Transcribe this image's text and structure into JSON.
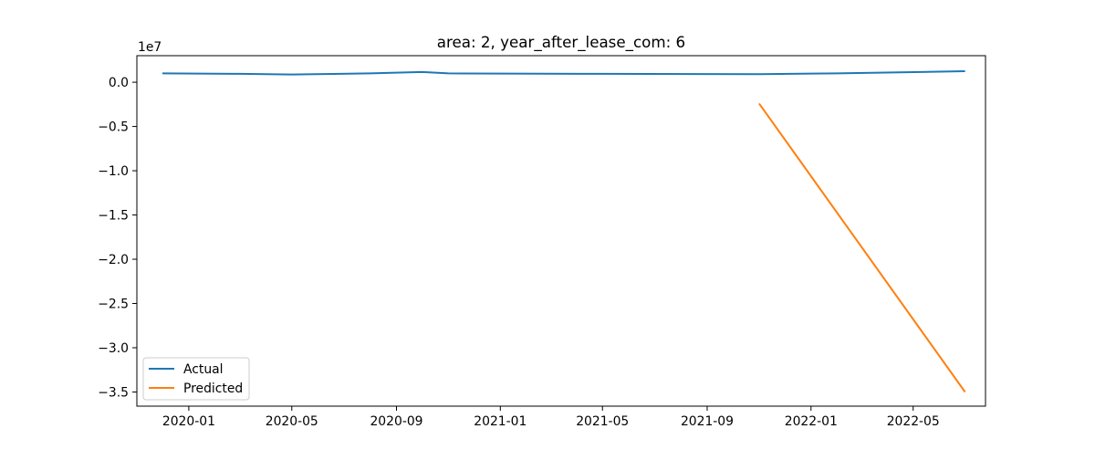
{
  "chart_data": {
    "type": "line",
    "title": "area: 2, year_after_lease_com: 6",
    "xlabel": "",
    "ylabel": "",
    "y_offset_label": "1e7",
    "x_type": "date",
    "xlim": [
      "2019-11-01",
      "2022-07-25"
    ],
    "ylim": [
      -36600000,
      3000000
    ],
    "x_ticks": [
      "2020-01-01",
      "2020-05-01",
      "2020-09-01",
      "2021-01-01",
      "2021-05-01",
      "2021-09-01",
      "2022-01-01",
      "2022-05-01"
    ],
    "x_tick_labels": [
      "2020-01",
      "2020-05",
      "2020-09",
      "2021-01",
      "2021-05",
      "2021-09",
      "2022-01",
      "2022-05"
    ],
    "y_ticks": [
      0,
      -5000000,
      -10000000,
      -15000000,
      -20000000,
      -25000000,
      -30000000,
      -35000000
    ],
    "y_tick_labels": [
      "0.0",
      "−0.5",
      "−1.0",
      "−1.5",
      "−2.0",
      "−2.5",
      "−3.0",
      "−3.5"
    ],
    "legend_position": "lower-left",
    "series": [
      {
        "name": "Actual",
        "color": "#1f77b4",
        "points": [
          {
            "x": "2019-12-01",
            "y": 1000000
          },
          {
            "x": "2020-03-01",
            "y": 950000
          },
          {
            "x": "2020-05-01",
            "y": 880000
          },
          {
            "x": "2020-08-01",
            "y": 1000000
          },
          {
            "x": "2020-10-01",
            "y": 1150000
          },
          {
            "x": "2020-11-01",
            "y": 1000000
          },
          {
            "x": "2021-05-01",
            "y": 950000
          },
          {
            "x": "2021-11-01",
            "y": 920000
          },
          {
            "x": "2022-02-01",
            "y": 1000000
          },
          {
            "x": "2022-07-01",
            "y": 1250000
          }
        ]
      },
      {
        "name": "Predicted",
        "color": "#ff7f0e",
        "points": [
          {
            "x": "2021-11-01",
            "y": -2400000
          },
          {
            "x": "2022-07-01",
            "y": -35000000
          }
        ]
      }
    ]
  }
}
